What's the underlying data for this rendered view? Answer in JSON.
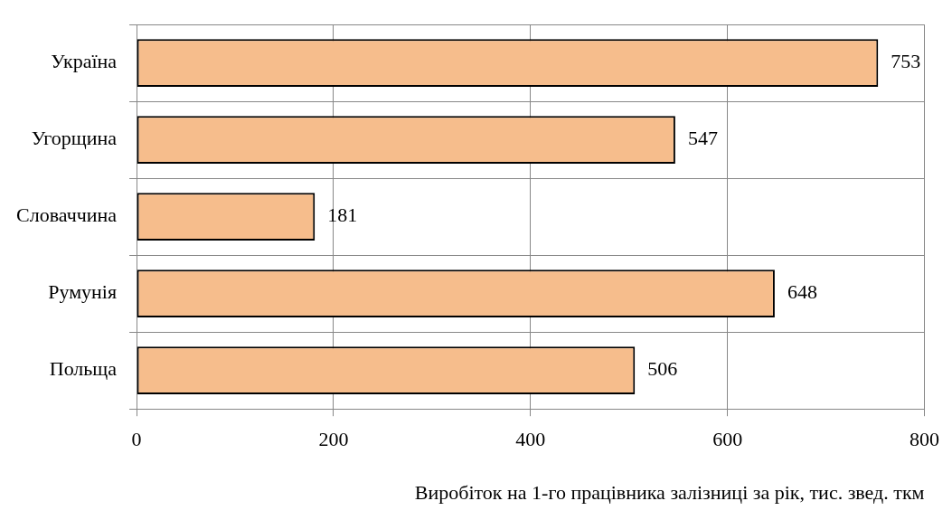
{
  "chart_data": {
    "type": "bar",
    "orientation": "horizontal",
    "xlabel": "Виробіток на 1-го працівника залізниці за рік, тис. звед. ткм",
    "categories": [
      "Україна",
      "Угорщина",
      "Словаччина",
      "Румунія",
      "Польща"
    ],
    "values": [
      753,
      547,
      181,
      648,
      506
    ],
    "color": "#f6bd8c",
    "xlim": [
      0,
      800
    ],
    "xticks": [
      0,
      200,
      400,
      600,
      800
    ],
    "grid": true,
    "data_labels": true
  }
}
